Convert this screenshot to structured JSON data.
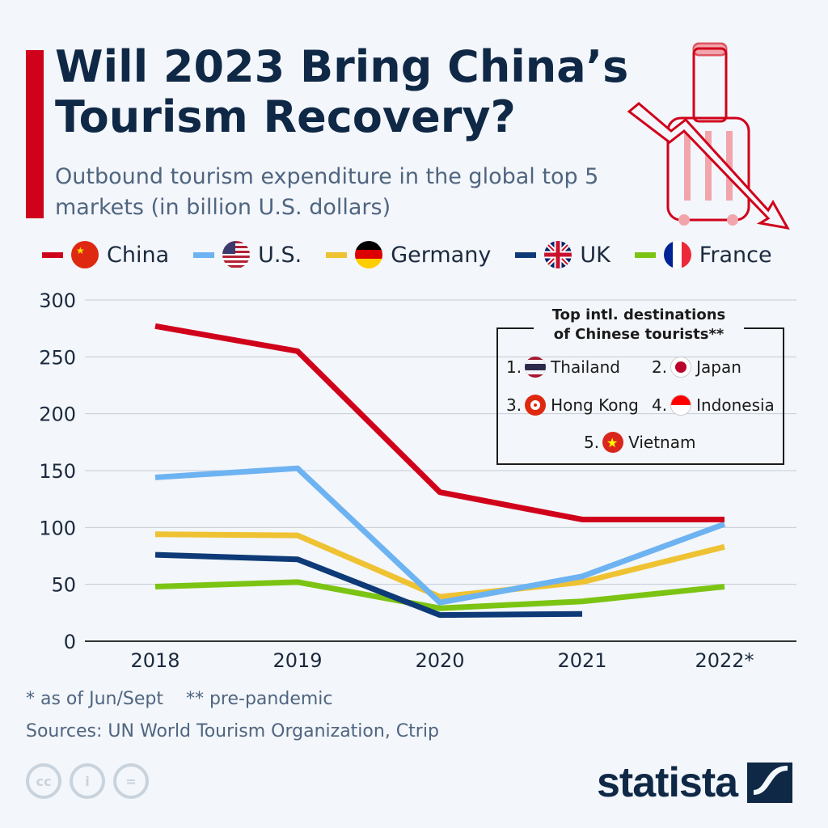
{
  "header": {
    "title": "Will 2023 Bring China’s Tourism Recovery?",
    "subtitle": "Outbound tourism expenditure in the global top 5 markets (in billion U.S. dollars)"
  },
  "destinations": {
    "title_line1": "Top intl. destinations",
    "title_line2": "of Chinese tourists**",
    "items": [
      {
        "rank": "1.",
        "name": "Thailand",
        "icon": "thailand-flag-icon"
      },
      {
        "rank": "2.",
        "name": "Japan",
        "icon": "japan-flag-icon"
      },
      {
        "rank": "3.",
        "name": "Hong Kong",
        "icon": "hong-kong-flag-icon"
      },
      {
        "rank": "4.",
        "name": "Indonesia",
        "icon": "indonesia-flag-icon"
      },
      {
        "rank": "5.",
        "name": "Vietnam",
        "icon": "vietnam-flag-icon"
      }
    ]
  },
  "footer": {
    "notes": "* as of Jun/Sept    ** pre-pandemic",
    "sources": "Sources: UN World Tourism Organization, Ctrip",
    "brand": "statista"
  },
  "chart_data": {
    "type": "line",
    "title": "Will 2023 Bring China’s Tourism Recovery?",
    "subtitle": "Outbound tourism expenditure in the global top 5 markets (in billion U.S. dollars)",
    "categories": [
      "2018",
      "2019",
      "2020",
      "2021",
      "2022*"
    ],
    "ylim": [
      0,
      300
    ],
    "yticks": [
      0,
      50,
      100,
      150,
      200,
      250,
      300
    ],
    "grid": true,
    "legend_position": "top",
    "series": [
      {
        "name": "China",
        "color": "#d0021b",
        "values": [
          277,
          255,
          131,
          107,
          107
        ]
      },
      {
        "name": "U.S.",
        "color": "#6db3f2",
        "values": [
          144,
          152,
          34,
          57,
          103
        ]
      },
      {
        "name": "Germany",
        "color": "#eec232",
        "values": [
          94,
          93,
          39,
          52,
          83
        ]
      },
      {
        "name": "UK",
        "color": "#0e3a78",
        "values": [
          76,
          72,
          23,
          24,
          null
        ]
      },
      {
        "name": "France",
        "color": "#7cc413",
        "values": [
          48,
          52,
          29,
          35,
          48
        ]
      }
    ]
  }
}
